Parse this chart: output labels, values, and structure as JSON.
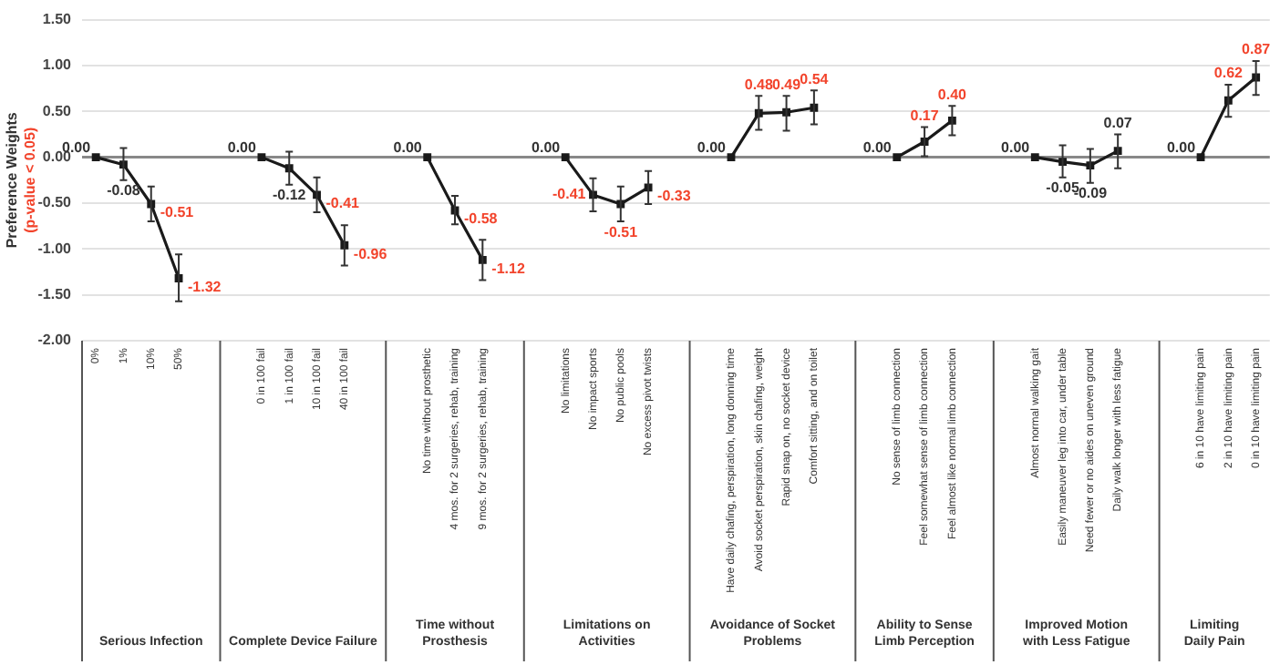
{
  "chart_data": {
    "type": "line",
    "ylabel": "Preference Weights\n(p-value < 0.05)",
    "categories": [
      "0%",
      "1%",
      "10%",
      "50%",
      null,
      null,
      "0 in 100 fail",
      "1 in 100 fail",
      "10 in 100 fail",
      "40 in 100 fail",
      null,
      null,
      "No time without prosthetic",
      "4 mos. for 2 surgeries, rehab, training",
      "9 mos. for 2 surgeries, rehab, training",
      null,
      null,
      "No limitations",
      "No impact sports",
      "No public pools",
      "No excess pivot twists",
      null,
      null,
      "Have daily chafing, perspiration, long donning time",
      "Avoid socket perspiration, skin chafing, weight",
      "Rapid snap on, no socket device",
      "Comfort sitting, and on toilet",
      null,
      null,
      "No sense of limb connection",
      "Feel somewhat sense of limb connection",
      "Feel almost like normal limb connection",
      null,
      null,
      "Almost normal walking gait",
      "Easily maneuver leg into car, under table",
      "Need fewer or no aides on uneven ground",
      "Daily walk longer with less fatigue",
      null,
      null,
      "6 in 10 have limiting pain",
      "2 in 10 have limiting pain",
      "0 in 10 have limiting pain"
    ],
    "series": [
      {
        "color": "#1a1a1a",
        "values": [
          0,
          -0.08,
          -0.51,
          -1.32,
          null,
          null,
          0,
          -0.12,
          -0.41,
          -0.96,
          null,
          null,
          0,
          -0.58,
          -1.12,
          null,
          null,
          0,
          -0.41,
          -0.51,
          -0.33,
          null,
          null,
          0,
          0.48,
          0.49,
          0.54,
          null,
          null,
          0,
          0.17,
          0.4,
          null,
          null,
          0,
          -0.05,
          -0.09,
          0.07,
          null,
          null,
          0,
          0.62,
          0.87
        ],
        "errors": [
          null,
          [
            -0.25,
            0.1
          ],
          [
            -0.7,
            -0.32
          ],
          [
            -1.57,
            -1.06
          ],
          null,
          null,
          null,
          [
            -0.3,
            0.06
          ],
          [
            -0.6,
            -0.22
          ],
          [
            -1.18,
            -0.74
          ],
          null,
          null,
          null,
          [
            -0.73,
            -0.42
          ],
          [
            -1.34,
            -0.9
          ],
          null,
          null,
          null,
          [
            -0.59,
            -0.23
          ],
          [
            -0.7,
            -0.32
          ],
          [
            -0.51,
            -0.15
          ],
          null,
          null,
          null,
          [
            0.3,
            0.67
          ],
          [
            0.29,
            0.67
          ],
          [
            0.36,
            0.73
          ],
          null,
          null,
          null,
          [
            0.01,
            0.33
          ],
          [
            0.24,
            0.56
          ],
          null,
          null,
          null,
          [
            -0.22,
            0.13
          ],
          [
            -0.28,
            0.09
          ],
          [
            -0.12,
            0.25
          ],
          null,
          null,
          null,
          [
            0.44,
            0.79
          ],
          [
            0.68,
            1.05
          ]
        ]
      }
    ],
    "value_labels": [
      "0.00",
      "-0.08",
      "-0.51",
      "-1.32",
      null,
      null,
      "0.00",
      "-0.12",
      "-0.41",
      "-0.96",
      null,
      null,
      "0.00",
      "-0.58",
      "-1.12",
      null,
      null,
      "0.00",
      "-0.41",
      "-0.51",
      "-0.33",
      null,
      null,
      "0.00",
      "0.48",
      "0.49",
      "0.54",
      null,
      null,
      "0.00",
      "0.17",
      "0.40",
      null,
      null,
      "0.00",
      "-0.05",
      "-0.09",
      "0.07",
      null,
      null,
      "0.00",
      "0.62",
      "0.87"
    ],
    "ylim": [
      -2.0,
      1.5
    ],
    "yticks": [
      {
        "value": -2.0,
        "label": "-2.00"
      },
      {
        "value": -1.5,
        "label": "-1.50"
      },
      {
        "value": -1.0,
        "label": "-1.00"
      },
      {
        "value": -0.5,
        "label": "-0.50"
      },
      {
        "value": 0,
        "label": "0.00"
      },
      {
        "value": 0.5,
        "label": "0.50"
      },
      {
        "value": 1.0,
        "label": "1.00"
      },
      {
        "value": 1.5,
        "label": "1.50"
      }
    ],
    "annotations": [
      "Serious Infection",
      "Complete Device Failure",
      "Time without Prosthesis",
      "Limitations on\nActivities",
      "Avoidance of Socket\nProblems",
      "Ability to Sense\nLimb Perception",
      "Improved Motion\nwith Less Fatigue",
      "Limiting\nDaily Pain"
    ],
    "grid": "y",
    "legend": false,
    "marker": "square",
    "line_style": "solid"
  }
}
